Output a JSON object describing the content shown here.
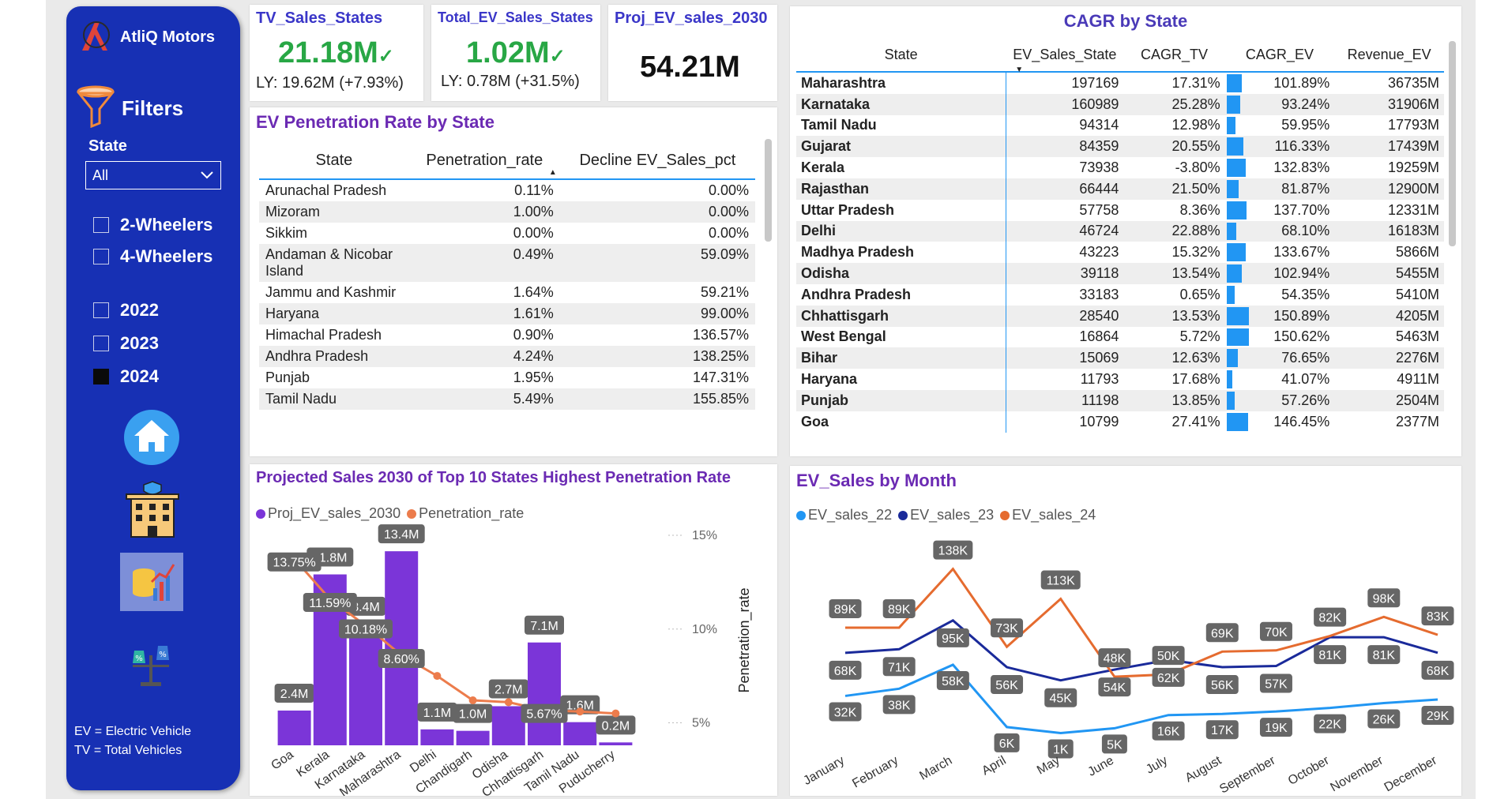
{
  "sidebar": {
    "brand": "AtliQ Motors",
    "filters_label": "Filters",
    "state_label": "State",
    "state_value": "All",
    "vehicle_options": [
      "2-Wheelers",
      "4-Wheelers"
    ],
    "year_options": [
      "2022",
      "2023",
      "2024"
    ],
    "year_checked": "2024",
    "legend_ev": "EV = Electric Vehicle",
    "legend_tv": "TV = Total Vehicles"
  },
  "kpis": {
    "tv_sales": {
      "title": "TV_Sales_States",
      "value": "21.18M",
      "ly": "LY: 19.62M (+7.93%)"
    },
    "ev_sales": {
      "title": "Total_EV_Sales_States",
      "value": "1.02M",
      "ly": "LY: 0.78M (+31.5%)"
    },
    "proj": {
      "title": "Proj_EV_sales_2030",
      "value": "54.21M"
    }
  },
  "penetration_table": {
    "title": "EV Penetration Rate by State",
    "headers": [
      "State",
      "Penetration_rate",
      "Decline EV_Sales_pct"
    ],
    "rows": [
      {
        "state": "Arunachal Pradesh",
        "rate": "0.11%",
        "decline": "0.00%"
      },
      {
        "state": "Mizoram",
        "rate": "1.00%",
        "decline": "0.00%"
      },
      {
        "state": "Sikkim",
        "rate": "0.00%",
        "decline": "0.00%"
      },
      {
        "state": "Andaman & Nicobar Island",
        "rate": "0.49%",
        "decline": "59.09%"
      },
      {
        "state": "Jammu and Kashmir",
        "rate": "1.64%",
        "decline": "59.21%"
      },
      {
        "state": "Haryana",
        "rate": "1.61%",
        "decline": "99.00%"
      },
      {
        "state": "Himachal Pradesh",
        "rate": "0.90%",
        "decline": "136.57%"
      },
      {
        "state": "Andhra Pradesh",
        "rate": "4.24%",
        "decline": "138.25%"
      },
      {
        "state": "Punjab",
        "rate": "1.95%",
        "decline": "147.31%"
      },
      {
        "state": "Tamil Nadu",
        "rate": "5.49%",
        "decline": "155.85%"
      }
    ]
  },
  "cagr_table": {
    "title": "CAGR by State",
    "headers": [
      "State",
      "EV_Sales_State",
      "CAGR_TV",
      "CAGR_EV",
      "Revenue_EV"
    ],
    "rows": [
      {
        "state": "Maharashtra",
        "ev": "197169",
        "tv": "17.31%",
        "cagr_ev": "101.89%",
        "cagr_ev_value": 101.89,
        "rev": "36735M"
      },
      {
        "state": "Karnataka",
        "ev": "160989",
        "tv": "25.28%",
        "cagr_ev": "93.24%",
        "cagr_ev_value": 93.24,
        "rev": "31906M"
      },
      {
        "state": "Tamil Nadu",
        "ev": "94314",
        "tv": "12.98%",
        "cagr_ev": "59.95%",
        "cagr_ev_value": 59.95,
        "rev": "17793M"
      },
      {
        "state": "Gujarat",
        "ev": "84359",
        "tv": "20.55%",
        "cagr_ev": "116.33%",
        "cagr_ev_value": 116.33,
        "rev": "17439M"
      },
      {
        "state": "Kerala",
        "ev": "73938",
        "tv": "-3.80%",
        "cagr_ev": "132.83%",
        "cagr_ev_value": 132.83,
        "rev": "19259M"
      },
      {
        "state": "Rajasthan",
        "ev": "66444",
        "tv": "21.50%",
        "cagr_ev": "81.87%",
        "cagr_ev_value": 81.87,
        "rev": "12900M"
      },
      {
        "state": "Uttar Pradesh",
        "ev": "57758",
        "tv": "8.36%",
        "cagr_ev": "137.70%",
        "cagr_ev_value": 137.7,
        "rev": "12331M"
      },
      {
        "state": "Delhi",
        "ev": "46724",
        "tv": "22.88%",
        "cagr_ev": "68.10%",
        "cagr_ev_value": 68.1,
        "rev": "16183M"
      },
      {
        "state": "Madhya Pradesh",
        "ev": "43223",
        "tv": "15.32%",
        "cagr_ev": "133.67%",
        "cagr_ev_value": 133.67,
        "rev": "5866M"
      },
      {
        "state": "Odisha",
        "ev": "39118",
        "tv": "13.54%",
        "cagr_ev": "102.94%",
        "cagr_ev_value": 102.94,
        "rev": "5455M"
      },
      {
        "state": "Andhra Pradesh",
        "ev": "33183",
        "tv": "0.65%",
        "cagr_ev": "54.35%",
        "cagr_ev_value": 54.35,
        "rev": "5410M"
      },
      {
        "state": "Chhattisgarh",
        "ev": "28540",
        "tv": "13.53%",
        "cagr_ev": "150.89%",
        "cagr_ev_value": 150.89,
        "rev": "4205M"
      },
      {
        "state": "West Bengal",
        "ev": "16864",
        "tv": "5.72%",
        "cagr_ev": "150.62%",
        "cagr_ev_value": 150.62,
        "rev": "5463M"
      },
      {
        "state": "Bihar",
        "ev": "15069",
        "tv": "12.63%",
        "cagr_ev": "76.65%",
        "cagr_ev_value": 76.65,
        "rev": "2276M"
      },
      {
        "state": "Haryana",
        "ev": "11793",
        "tv": "17.68%",
        "cagr_ev": "41.07%",
        "cagr_ev_value": 41.07,
        "rev": "4911M"
      },
      {
        "state": "Punjab",
        "ev": "11198",
        "tv": "13.85%",
        "cagr_ev": "57.26%",
        "cagr_ev_value": 57.26,
        "rev": "2504M"
      },
      {
        "state": "Goa",
        "ev": "10799",
        "tv": "27.41%",
        "cagr_ev": "146.45%",
        "cagr_ev_value": 146.45,
        "rev": "2377M"
      }
    ]
  },
  "colors": {
    "sidebar": "#1730b4",
    "title_purple": "#6b2ab3",
    "kpi_title": "#3a36c8",
    "kpi_green": "#28a745",
    "bar_purple": "#7b35d8",
    "line_orange": "#ec7c4c",
    "ev22": "#2196f3",
    "ev23": "#1a2a9a",
    "ev24": "#e56b2f",
    "table_accent": "#2196f3"
  },
  "chart_data": [
    {
      "type": "bar",
      "title": "Projected Sales 2030 of Top 10 States Highest Penetration Rate",
      "legend": [
        "Proj_EV_sales_2030",
        "Penetration_rate"
      ],
      "categories": [
        "Goa",
        "Kerala",
        "Karnataka",
        "Maharashtra",
        "Delhi",
        "Chandigarh",
        "Odisha",
        "Chhattisgarh",
        "Tamil Nadu",
        "Puducherry"
      ],
      "series": [
        {
          "name": "Proj_EV_sales_2030",
          "values": [
            2.4,
            11.8,
            8.4,
            13.4,
            1.1,
            1.0,
            2.7,
            7.1,
            1.6,
            0.2
          ],
          "labels": [
            "2.4M",
            "11.8M",
            "8.4M",
            "13.4M",
            "1.1M",
            "1.0M",
            "2.7M",
            "7.1M",
            "1.6M",
            "0.2M"
          ]
        },
        {
          "name": "Penetration_rate",
          "values": [
            13.75,
            11.59,
            10.18,
            8.6,
            7.5,
            6.2,
            6.1,
            5.67,
            5.6,
            5.5
          ],
          "labels": [
            "13.75%",
            "11.59%",
            "10.18%",
            "8.60%",
            "",
            "",
            "",
            "5.67%",
            "",
            ""
          ]
        }
      ],
      "y_range": [
        0,
        14.5
      ],
      "y2label": "Penetration_rate",
      "y2ticks": [
        "15%",
        "10%",
        "5%"
      ],
      "y2_range": [
        3.8,
        15
      ]
    },
    {
      "type": "line",
      "title": "EV_Sales by Month",
      "categories": [
        "January",
        "February",
        "March",
        "April",
        "May",
        "June",
        "July",
        "August",
        "September",
        "October",
        "November",
        "December"
      ],
      "series": [
        {
          "name": "EV_sales_22",
          "values": [
            32,
            38,
            58,
            6,
            1,
            5,
            16,
            17,
            19,
            22,
            26,
            29
          ],
          "labels": [
            "32K",
            "38K",
            "58K",
            "6K",
            "1K",
            "5K",
            "16K",
            "17K",
            "19K",
            "22K",
            "26K",
            "29K"
          ]
        },
        {
          "name": "EV_sales_23",
          "values": [
            68,
            71,
            95,
            56,
            45,
            54,
            62,
            56,
            57,
            81,
            81,
            68
          ],
          "labels": [
            "68K",
            "71K",
            "95K",
            "56K",
            "45K",
            "54K",
            "62K",
            "56K",
            "57K",
            "81K",
            "81K",
            "68K"
          ]
        },
        {
          "name": "EV_sales_24",
          "values": [
            89,
            89,
            138,
            73,
            113,
            48,
            50,
            69,
            70,
            82,
            98,
            83
          ],
          "labels": [
            "89K",
            "89K",
            "138K",
            "73K",
            "113K",
            "48K",
            "50K",
            "69K",
            "70K",
            "82K",
            "98K",
            "83K"
          ]
        }
      ],
      "y_range": [
        0,
        145
      ]
    }
  ]
}
